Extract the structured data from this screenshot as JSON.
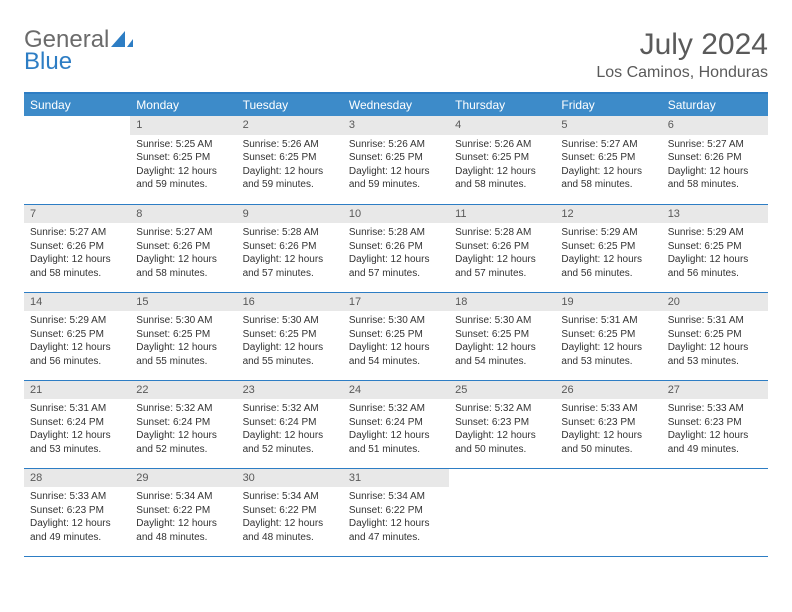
{
  "logo": {
    "general": "General",
    "blue": "Blue"
  },
  "header": {
    "title": "July 2024",
    "location": "Los Caminos, Honduras"
  },
  "colors": {
    "brand": "#2d7dc4",
    "header_bg": "#3d8bc9",
    "header_text": "#ffffff",
    "daynum_bg": "#e8e8e8",
    "daynum_text": "#595959",
    "body_text": "#333333",
    "title_text": "#5a5a5a"
  },
  "days": [
    "Sunday",
    "Monday",
    "Tuesday",
    "Wednesday",
    "Thursday",
    "Friday",
    "Saturday"
  ],
  "weeks": [
    [
      null,
      {
        "n": "1",
        "sr": "Sunrise: 5:25 AM",
        "ss": "Sunset: 6:25 PM",
        "d1": "Daylight: 12 hours",
        "d2": "and 59 minutes."
      },
      {
        "n": "2",
        "sr": "Sunrise: 5:26 AM",
        "ss": "Sunset: 6:25 PM",
        "d1": "Daylight: 12 hours",
        "d2": "and 59 minutes."
      },
      {
        "n": "3",
        "sr": "Sunrise: 5:26 AM",
        "ss": "Sunset: 6:25 PM",
        "d1": "Daylight: 12 hours",
        "d2": "and 59 minutes."
      },
      {
        "n": "4",
        "sr": "Sunrise: 5:26 AM",
        "ss": "Sunset: 6:25 PM",
        "d1": "Daylight: 12 hours",
        "d2": "and 58 minutes."
      },
      {
        "n": "5",
        "sr": "Sunrise: 5:27 AM",
        "ss": "Sunset: 6:25 PM",
        "d1": "Daylight: 12 hours",
        "d2": "and 58 minutes."
      },
      {
        "n": "6",
        "sr": "Sunrise: 5:27 AM",
        "ss": "Sunset: 6:26 PM",
        "d1": "Daylight: 12 hours",
        "d2": "and 58 minutes."
      }
    ],
    [
      {
        "n": "7",
        "sr": "Sunrise: 5:27 AM",
        "ss": "Sunset: 6:26 PM",
        "d1": "Daylight: 12 hours",
        "d2": "and 58 minutes."
      },
      {
        "n": "8",
        "sr": "Sunrise: 5:27 AM",
        "ss": "Sunset: 6:26 PM",
        "d1": "Daylight: 12 hours",
        "d2": "and 58 minutes."
      },
      {
        "n": "9",
        "sr": "Sunrise: 5:28 AM",
        "ss": "Sunset: 6:26 PM",
        "d1": "Daylight: 12 hours",
        "d2": "and 57 minutes."
      },
      {
        "n": "10",
        "sr": "Sunrise: 5:28 AM",
        "ss": "Sunset: 6:26 PM",
        "d1": "Daylight: 12 hours",
        "d2": "and 57 minutes."
      },
      {
        "n": "11",
        "sr": "Sunrise: 5:28 AM",
        "ss": "Sunset: 6:26 PM",
        "d1": "Daylight: 12 hours",
        "d2": "and 57 minutes."
      },
      {
        "n": "12",
        "sr": "Sunrise: 5:29 AM",
        "ss": "Sunset: 6:25 PM",
        "d1": "Daylight: 12 hours",
        "d2": "and 56 minutes."
      },
      {
        "n": "13",
        "sr": "Sunrise: 5:29 AM",
        "ss": "Sunset: 6:25 PM",
        "d1": "Daylight: 12 hours",
        "d2": "and 56 minutes."
      }
    ],
    [
      {
        "n": "14",
        "sr": "Sunrise: 5:29 AM",
        "ss": "Sunset: 6:25 PM",
        "d1": "Daylight: 12 hours",
        "d2": "and 56 minutes."
      },
      {
        "n": "15",
        "sr": "Sunrise: 5:30 AM",
        "ss": "Sunset: 6:25 PM",
        "d1": "Daylight: 12 hours",
        "d2": "and 55 minutes."
      },
      {
        "n": "16",
        "sr": "Sunrise: 5:30 AM",
        "ss": "Sunset: 6:25 PM",
        "d1": "Daylight: 12 hours",
        "d2": "and 55 minutes."
      },
      {
        "n": "17",
        "sr": "Sunrise: 5:30 AM",
        "ss": "Sunset: 6:25 PM",
        "d1": "Daylight: 12 hours",
        "d2": "and 54 minutes."
      },
      {
        "n": "18",
        "sr": "Sunrise: 5:30 AM",
        "ss": "Sunset: 6:25 PM",
        "d1": "Daylight: 12 hours",
        "d2": "and 54 minutes."
      },
      {
        "n": "19",
        "sr": "Sunrise: 5:31 AM",
        "ss": "Sunset: 6:25 PM",
        "d1": "Daylight: 12 hours",
        "d2": "and 53 minutes."
      },
      {
        "n": "20",
        "sr": "Sunrise: 5:31 AM",
        "ss": "Sunset: 6:25 PM",
        "d1": "Daylight: 12 hours",
        "d2": "and 53 minutes."
      }
    ],
    [
      {
        "n": "21",
        "sr": "Sunrise: 5:31 AM",
        "ss": "Sunset: 6:24 PM",
        "d1": "Daylight: 12 hours",
        "d2": "and 53 minutes."
      },
      {
        "n": "22",
        "sr": "Sunrise: 5:32 AM",
        "ss": "Sunset: 6:24 PM",
        "d1": "Daylight: 12 hours",
        "d2": "and 52 minutes."
      },
      {
        "n": "23",
        "sr": "Sunrise: 5:32 AM",
        "ss": "Sunset: 6:24 PM",
        "d1": "Daylight: 12 hours",
        "d2": "and 52 minutes."
      },
      {
        "n": "24",
        "sr": "Sunrise: 5:32 AM",
        "ss": "Sunset: 6:24 PM",
        "d1": "Daylight: 12 hours",
        "d2": "and 51 minutes."
      },
      {
        "n": "25",
        "sr": "Sunrise: 5:32 AM",
        "ss": "Sunset: 6:23 PM",
        "d1": "Daylight: 12 hours",
        "d2": "and 50 minutes."
      },
      {
        "n": "26",
        "sr": "Sunrise: 5:33 AM",
        "ss": "Sunset: 6:23 PM",
        "d1": "Daylight: 12 hours",
        "d2": "and 50 minutes."
      },
      {
        "n": "27",
        "sr": "Sunrise: 5:33 AM",
        "ss": "Sunset: 6:23 PM",
        "d1": "Daylight: 12 hours",
        "d2": "and 49 minutes."
      }
    ],
    [
      {
        "n": "28",
        "sr": "Sunrise: 5:33 AM",
        "ss": "Sunset: 6:23 PM",
        "d1": "Daylight: 12 hours",
        "d2": "and 49 minutes."
      },
      {
        "n": "29",
        "sr": "Sunrise: 5:34 AM",
        "ss": "Sunset: 6:22 PM",
        "d1": "Daylight: 12 hours",
        "d2": "and 48 minutes."
      },
      {
        "n": "30",
        "sr": "Sunrise: 5:34 AM",
        "ss": "Sunset: 6:22 PM",
        "d1": "Daylight: 12 hours",
        "d2": "and 48 minutes."
      },
      {
        "n": "31",
        "sr": "Sunrise: 5:34 AM",
        "ss": "Sunset: 6:22 PM",
        "d1": "Daylight: 12 hours",
        "d2": "and 47 minutes."
      },
      null,
      null,
      null
    ]
  ]
}
